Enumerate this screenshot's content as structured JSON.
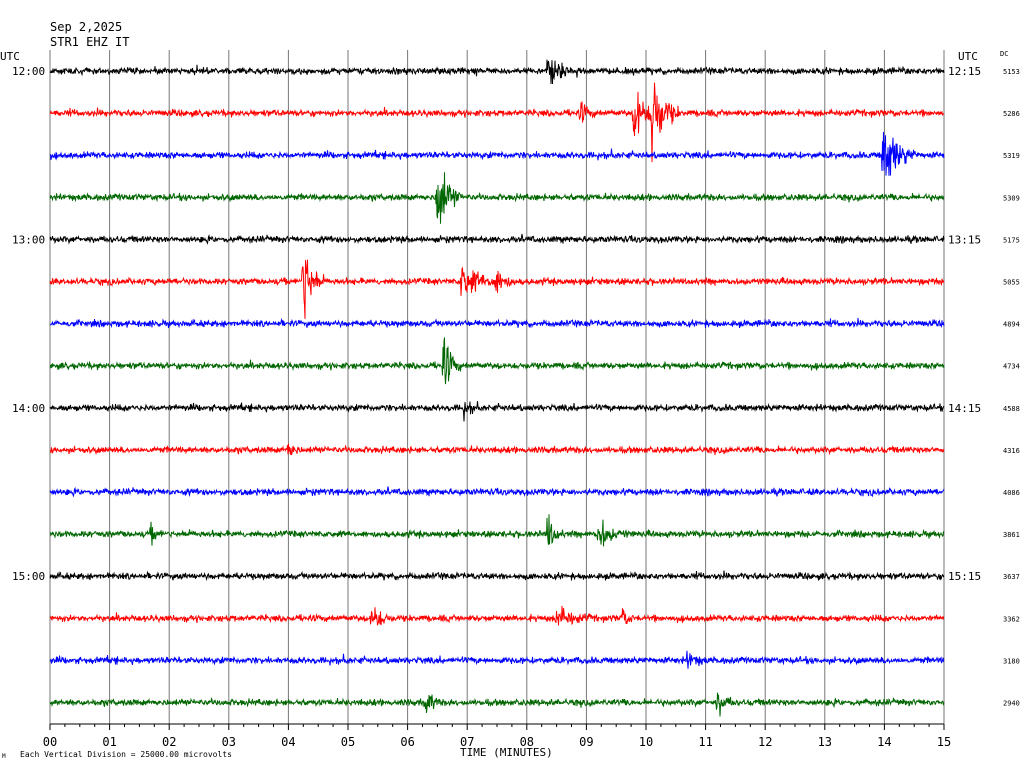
{
  "header": {
    "date": "Sep 2,2025",
    "station": "STR1 EHZ IT",
    "utc_left": "UTC",
    "utc_right": "UTC",
    "dc_label": "DC"
  },
  "footer": {
    "xlabel": "TIME (MINUTES)",
    "scale_note": "Each Vertical Division = 25000.00 microvolts",
    "corner_mark": "M"
  },
  "chart_data": {
    "type": "line",
    "title": "",
    "xlabel": "TIME (MINUTES)",
    "ylabel": "",
    "xlim": [
      0,
      15
    ],
    "x_ticks": [
      "00",
      "01",
      "02",
      "03",
      "04",
      "05",
      "06",
      "07",
      "08",
      "09",
      "10",
      "11",
      "12",
      "13",
      "14",
      "15"
    ],
    "grid": "vertical lines every minute",
    "trace_colors": [
      "#000000",
      "#ff0000",
      "#0000ff",
      "#006600"
    ],
    "left_time_labels": [
      {
        "row": 0,
        "text": "12:00"
      },
      {
        "row": 4,
        "text": "13:00"
      },
      {
        "row": 8,
        "text": "14:00"
      },
      {
        "row": 12,
        "text": "15:00"
      }
    ],
    "right_time_labels": [
      {
        "row": 0,
        "text": "12:15"
      },
      {
        "row": 4,
        "text": "13:15"
      },
      {
        "row": 8,
        "text": "14:15"
      },
      {
        "row": 12,
        "text": "15:15"
      }
    ],
    "dc_values": [
      "5153",
      "5286",
      "5319",
      "5309",
      "5175",
      "5055",
      "4894",
      "4734",
      "4588",
      "4316",
      "4086",
      "3861",
      "3637",
      "3362",
      "3180",
      "2940"
    ],
    "events": [
      {
        "row": 0,
        "minute": 8.35,
        "amplitude": 16,
        "duration": 0.45
      },
      {
        "row": 1,
        "minute": 9.8,
        "amplitude": 28,
        "duration": 0.35
      },
      {
        "row": 1,
        "minute": 10.1,
        "amplitude": 38,
        "duration": 0.45
      },
      {
        "row": 1,
        "minute": 8.9,
        "amplitude": 7,
        "duration": 0.3
      },
      {
        "row": 2,
        "minute": 13.98,
        "amplitude": 30,
        "duration": 0.55
      },
      {
        "row": 3,
        "minute": 6.5,
        "amplitude": 36,
        "duration": 0.4
      },
      {
        "row": 5,
        "minute": 4.25,
        "amplitude": 36,
        "duration": 0.35
      },
      {
        "row": 5,
        "minute": 6.9,
        "amplitude": 14,
        "duration": 0.7
      },
      {
        "row": 5,
        "minute": 7.45,
        "amplitude": 10,
        "duration": 0.4
      },
      {
        "row": 7,
        "minute": 6.6,
        "amplitude": 22,
        "duration": 0.3
      },
      {
        "row": 8,
        "minute": 6.95,
        "amplitude": 8,
        "duration": 0.2
      },
      {
        "row": 9,
        "minute": 4.0,
        "amplitude": 8,
        "duration": 0.2
      },
      {
        "row": 11,
        "minute": 8.35,
        "amplitude": 16,
        "duration": 0.25
      },
      {
        "row": 11,
        "minute": 9.2,
        "amplitude": 12,
        "duration": 0.5
      },
      {
        "row": 11,
        "minute": 1.7,
        "amplitude": 6,
        "duration": 0.2
      },
      {
        "row": 13,
        "minute": 5.4,
        "amplitude": 12,
        "duration": 0.35
      },
      {
        "row": 13,
        "minute": 8.5,
        "amplitude": 9,
        "duration": 0.6
      },
      {
        "row": 13,
        "minute": 9.6,
        "amplitude": 8,
        "duration": 0.2
      },
      {
        "row": 14,
        "minute": 10.7,
        "amplitude": 6,
        "duration": 0.35
      },
      {
        "row": 15,
        "minute": 6.3,
        "amplitude": 12,
        "duration": 0.25
      },
      {
        "row": 15,
        "minute": 11.2,
        "amplitude": 10,
        "duration": 0.3
      }
    ]
  }
}
